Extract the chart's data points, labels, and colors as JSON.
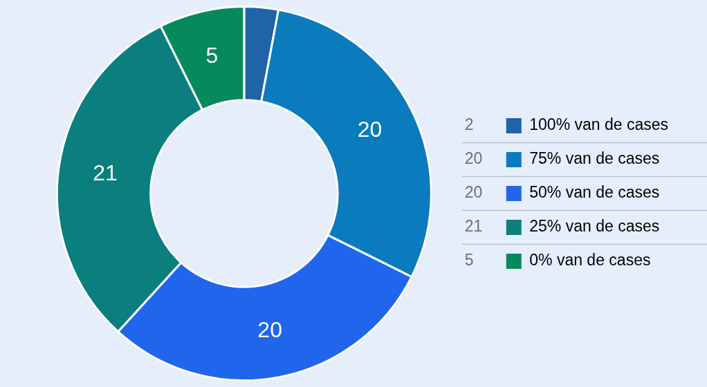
{
  "chart_data": {
    "type": "donut",
    "categories": [
      "100% van de cases",
      "75% van de cases",
      "50% van de cases",
      "25% van de cases",
      "0% van de cases"
    ],
    "values": [
      2,
      20,
      20,
      21,
      5
    ],
    "colors": [
      "#1f63a8",
      "#0a7bbd",
      "#1f66ec",
      "#0b7f7d",
      "#078a5b"
    ],
    "value_labels": [
      null,
      "20",
      "20",
      "21",
      "5"
    ],
    "annotations": [
      "2",
      "20",
      "20",
      "21",
      "5"
    ],
    "legend": "right"
  }
}
